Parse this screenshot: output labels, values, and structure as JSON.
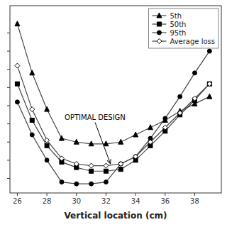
{
  "chart_data": {
    "type": "line",
    "x": [
      26,
      27,
      28,
      29,
      30,
      31,
      32,
      33,
      34,
      35,
      36,
      37,
      38,
      39
    ],
    "series": [
      {
        "name": "5th",
        "color": "#444444",
        "marker": "triangle",
        "values": [
          10.5,
          7.8,
          5.8,
          4.2,
          4.0,
          3.9,
          3.9,
          4.0,
          4.4,
          4.8,
          5.2,
          5.7,
          6.1,
          6.5
        ]
      },
      {
        "name": "50th",
        "color": "#444444",
        "marker": "square",
        "values": [
          7.2,
          5.2,
          3.8,
          2.9,
          2.6,
          2.4,
          2.4,
          2.5,
          3.0,
          3.8,
          4.6,
          5.5,
          6.3,
          7.2
        ]
      },
      {
        "name": "95th",
        "color": "#444444",
        "marker": "circle",
        "values": [
          6.2,
          4.4,
          3.0,
          1.8,
          1.7,
          1.7,
          1.8,
          2.8,
          3.2,
          4.2,
          5.3,
          6.5,
          7.8,
          9.0
        ]
      },
      {
        "name": "Average loss",
        "color": "#444444",
        "marker": "open-diamond",
        "values": [
          8.2,
          5.8,
          4.1,
          3.1,
          2.8,
          2.7,
          2.7,
          2.8,
          3.2,
          4.0,
          4.8,
          5.6,
          6.4,
          7.2
        ]
      }
    ],
    "x_label": "Vertical location (cm)",
    "xlim": [
      25.5,
      39.8
    ],
    "ylim": [
      1.2,
      11.5
    ],
    "xticks": [
      26,
      28,
      30,
      32,
      34,
      36,
      38
    ],
    "yticks": [
      2,
      3,
      4,
      5,
      6,
      7,
      8,
      9,
      10
    ],
    "tick_labels": "x",
    "grid": false,
    "legend": "upper right",
    "annotations": [
      {
        "text": "OPTIMAL DESIGN",
        "x": 29.2,
        "y": 5.2,
        "arrow_x": 32.3,
        "arrow_y": 2.8
      }
    ]
  }
}
